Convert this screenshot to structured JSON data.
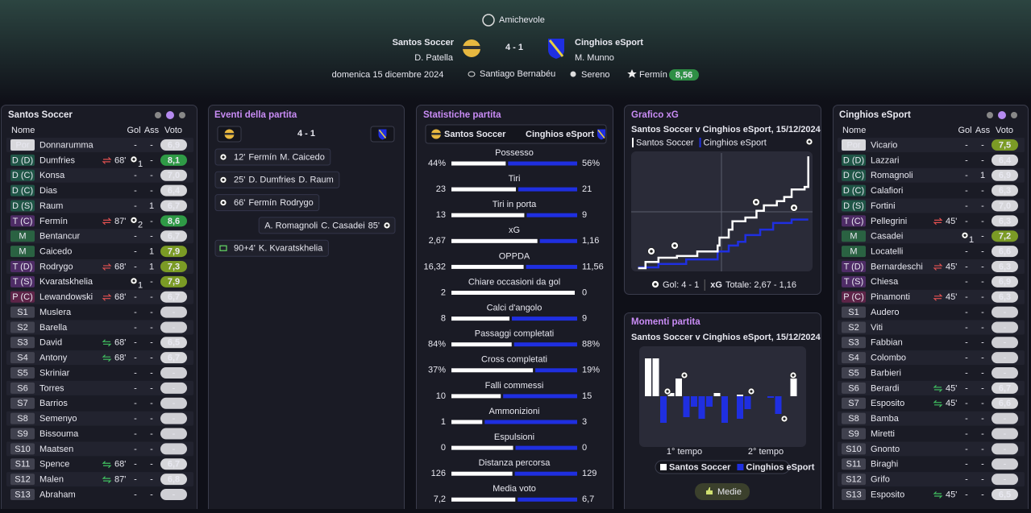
{
  "header": {
    "competition": "Amichevole",
    "home_team": "Santos Soccer",
    "home_manager": "D. Patella",
    "score": "4 - 1",
    "away_team": "Cinghios eSport",
    "away_manager": "M. Munno",
    "date": "domenica 15 dicembre 2024",
    "stadium": "Santiago Bernabéu",
    "weather": "Sereno",
    "player_of_match": "Fermín",
    "player_of_match_rating": "8,56"
  },
  "home_lineup": {
    "title": "Santos Soccer",
    "columns": [
      "Nome",
      "Gol",
      "Ass",
      "Voto"
    ],
    "rows": [
      {
        "pos": "Por",
        "name": "Donnarumma",
        "gol": "-",
        "ass": "-",
        "voto": {
          "value": 6.9,
          "label": "6,9"
        }
      },
      {
        "pos": "D (D)",
        "name": "Dumfries",
        "sub": {
          "dir": "out",
          "minute": "68'"
        },
        "gol": 1,
        "ass": "-",
        "voto": {
          "value": 8.1,
          "label": "8,1"
        }
      },
      {
        "pos": "D (C)",
        "name": "Konsa",
        "gol": "-",
        "ass": "-",
        "voto": {
          "value": 7.0,
          "label": "7,0"
        }
      },
      {
        "pos": "D (C)",
        "name": "Dias",
        "gol": "-",
        "ass": "-",
        "voto": {
          "value": 6.4,
          "label": "6,4"
        }
      },
      {
        "pos": "D (S)",
        "name": "Raum",
        "name_color": "#f2e35a",
        "gol": "-",
        "ass": 1,
        "voto": {
          "value": 6.7,
          "label": "6,7"
        }
      },
      {
        "pos": "T (C)",
        "name": "Fermín",
        "sub": {
          "dir": "out",
          "minute": "87'"
        },
        "gol": 2,
        "ass": "-",
        "voto": {
          "value": 8.6,
          "label": "8,6"
        }
      },
      {
        "pos": "M",
        "name": "Bentancur",
        "gol": "-",
        "ass": "-",
        "voto": {
          "value": 6.7,
          "label": "6,7"
        }
      },
      {
        "pos": "M",
        "name": "Caicedo",
        "gol": "-",
        "ass": 1,
        "voto": {
          "value": 7.9,
          "label": "7,9"
        }
      },
      {
        "pos": "T (D)",
        "name": "Rodrygo",
        "sub": {
          "dir": "out",
          "minute": "68'"
        },
        "gol": "-",
        "ass": 1,
        "voto": {
          "value": 7.3,
          "label": "7,3"
        }
      },
      {
        "pos": "T (S)",
        "name": "Kvaratskhelia",
        "gol": 1,
        "ass": "-",
        "voto": {
          "value": 7.9,
          "label": "7,9"
        }
      },
      {
        "pos": "P (C)",
        "name": "Lewandowski",
        "sub": {
          "dir": "out",
          "minute": "68'"
        },
        "gol": "-",
        "ass": "-",
        "voto": {
          "value": 6.7,
          "label": "6,7"
        }
      },
      {
        "pos": "S1",
        "name": "Muslera",
        "gol": "-",
        "ass": "-",
        "voto": "-"
      },
      {
        "pos": "S2",
        "name": "Barella",
        "gol": "-",
        "ass": "-",
        "voto": "-"
      },
      {
        "pos": "S3",
        "name": "David",
        "sub": {
          "dir": "in",
          "minute": "68'"
        },
        "gol": "-",
        "ass": "-",
        "voto": {
          "value": 6.5,
          "label": "6,5"
        }
      },
      {
        "pos": "S4",
        "name": "Antony",
        "sub": {
          "dir": "in",
          "minute": "68'"
        },
        "gol": "-",
        "ass": "-",
        "voto": {
          "value": 6.7,
          "label": "6,7"
        }
      },
      {
        "pos": "S5",
        "name": "Skriniar",
        "gol": "-",
        "ass": "-",
        "voto": "-"
      },
      {
        "pos": "S6",
        "name": "Torres",
        "gol": "-",
        "ass": "-",
        "voto": "-"
      },
      {
        "pos": "S7",
        "name": "Barrios",
        "gol": "-",
        "ass": "-",
        "voto": "-"
      },
      {
        "pos": "S8",
        "name": "Semenyo",
        "gol": "-",
        "ass": "-",
        "voto": "-"
      },
      {
        "pos": "S9",
        "name": "Bissouma",
        "gol": "-",
        "ass": "-",
        "voto": "-"
      },
      {
        "pos": "S10",
        "name": "Maatsen",
        "gol": "-",
        "ass": "-",
        "voto": "-"
      },
      {
        "pos": "S11",
        "name": "Spence",
        "sub": {
          "dir": "in",
          "minute": "68'"
        },
        "gol": "-",
        "ass": "-",
        "voto": {
          "value": 6.7,
          "label": "6,7"
        }
      },
      {
        "pos": "S12",
        "name": "Malen",
        "sub": {
          "dir": "in",
          "minute": "87'"
        },
        "gol": "-",
        "ass": "-",
        "voto": {
          "value": 6.8,
          "label": "6,8"
        }
      },
      {
        "pos": "S13",
        "name": "Abraham",
        "gol": "-",
        "ass": "-",
        "voto": "-"
      }
    ]
  },
  "away_lineup": {
    "title": "Cinghios eSport",
    "columns": [
      "Nome",
      "Gol",
      "Ass",
      "Voto"
    ],
    "rows": [
      {
        "pos": "Por",
        "name": "Vicario",
        "gol": "-",
        "ass": "-",
        "voto": {
          "value": 7.5,
          "label": "7,5"
        }
      },
      {
        "pos": "D (D)",
        "name": "Lazzari",
        "gol": "-",
        "ass": "-",
        "voto": {
          "value": 6.4,
          "label": "6,4"
        }
      },
      {
        "pos": "D (C)",
        "name": "Romagnoli",
        "gol": "-",
        "ass": 1,
        "voto": {
          "value": 6.9,
          "label": "6,9"
        }
      },
      {
        "pos": "D (C)",
        "name": "Calafiori",
        "gol": "-",
        "ass": "-",
        "voto": {
          "value": 6.3,
          "label": "6,3"
        }
      },
      {
        "pos": "D (S)",
        "name": "Fortini",
        "name_color": "#f2e35a",
        "gol": "-",
        "ass": "-",
        "voto": {
          "value": 7.0,
          "label": "7,0"
        }
      },
      {
        "pos": "T (C)",
        "name": "Pellegrini",
        "sub": {
          "dir": "out",
          "minute": "45'"
        },
        "gol": "-",
        "ass": "-",
        "voto": {
          "value": 6.3,
          "label": "6,3"
        }
      },
      {
        "pos": "M",
        "name": "Casadei",
        "gol": 1,
        "ass": "-",
        "voto": {
          "value": 7.2,
          "label": "7,2"
        }
      },
      {
        "pos": "M",
        "name": "Locatelli",
        "gol": "-",
        "ass": "-",
        "voto": {
          "value": 6.6,
          "label": "6,6"
        }
      },
      {
        "pos": "T (D)",
        "name": "Bernardeschi",
        "name_color": "#f2e35a",
        "sub": {
          "dir": "out",
          "minute": "45'"
        },
        "gol": "-",
        "ass": "-",
        "voto": {
          "value": 6.3,
          "label": "6,3"
        }
      },
      {
        "pos": "T (S)",
        "name": "Chiesa",
        "name_color": "#f2e35a",
        "gol": "-",
        "ass": "-",
        "voto": {
          "value": 6.9,
          "label": "6,9"
        }
      },
      {
        "pos": "P (C)",
        "name": "Pinamonti",
        "sub": {
          "dir": "out",
          "minute": "45'"
        },
        "gol": "-",
        "ass": "-",
        "voto": {
          "value": 6.3,
          "label": "6,3"
        }
      },
      {
        "pos": "S1",
        "name": "Audero",
        "gol": "-",
        "ass": "-",
        "voto": "-"
      },
      {
        "pos": "S2",
        "name": "Viti",
        "gol": "-",
        "ass": "-",
        "voto": "-"
      },
      {
        "pos": "S3",
        "name": "Fabbian",
        "gol": "-",
        "ass": "-",
        "voto": "-"
      },
      {
        "pos": "S4",
        "name": "Colombo",
        "gol": "-",
        "ass": "-",
        "voto": "-"
      },
      {
        "pos": "S5",
        "name": "Barbieri",
        "gol": "-",
        "ass": "-",
        "voto": "-"
      },
      {
        "pos": "S6",
        "name": "Berardi",
        "sub": {
          "dir": "in",
          "minute": "45'"
        },
        "gol": "-",
        "ass": "-",
        "voto": {
          "value": 6.7,
          "label": "6,7"
        }
      },
      {
        "pos": "S7",
        "name": "Esposito",
        "sub": {
          "dir": "in",
          "minute": "45'"
        },
        "gol": "-",
        "ass": "-",
        "voto": {
          "value": 6.6,
          "label": "6,6"
        }
      },
      {
        "pos": "S8",
        "name": "Bamba",
        "gol": "-",
        "ass": "-",
        "voto": "-"
      },
      {
        "pos": "S9",
        "name": "Miretti",
        "gol": "-",
        "ass": "-",
        "voto": "-"
      },
      {
        "pos": "S10",
        "name": "Gnonto",
        "gol": "-",
        "ass": "-",
        "voto": "-"
      },
      {
        "pos": "S11",
        "name": "Biraghi",
        "gol": "-",
        "ass": "-",
        "voto": "-"
      },
      {
        "pos": "S12",
        "name": "Grifo",
        "gol": "-",
        "ass": "-",
        "voto": "-"
      },
      {
        "pos": "S13",
        "name": "Esposito",
        "sub": {
          "dir": "in",
          "minute": "45'"
        },
        "gol": "-",
        "ass": "-",
        "voto": {
          "value": 6.5,
          "label": "6,5"
        }
      }
    ]
  },
  "events": {
    "title": "Eventi della partita",
    "score": "4 - 1",
    "items": [
      {
        "side": "home",
        "minute": "12'",
        "player": "Fermín",
        "assist": "M. Caicedo"
      },
      {
        "side": "home",
        "minute": "25'",
        "player": "D. Dumfries",
        "assist": "D. Raum"
      },
      {
        "side": "home",
        "minute": "66'",
        "player": "Fermín",
        "assist": "Rodrygo"
      },
      {
        "side": "away",
        "minute": "85'",
        "player": "C. Casadei",
        "assist": "A. Romagnoli"
      },
      {
        "side": "home",
        "minute": "90+4'",
        "player": "K. Kvaratskhelia",
        "type": "penalty"
      }
    ]
  },
  "stats": {
    "title": "Statistiche partita",
    "home_team": "Santos Soccer",
    "away_team": "Cinghios eSport",
    "home_color": "#ffffff",
    "away_color": "#1f2fe0",
    "items": [
      {
        "label": "Possesso",
        "home": {
          "value": 44,
          "label": "44%"
        },
        "away": {
          "value": 56,
          "label": "56%"
        }
      },
      {
        "label": "Tiri",
        "home": 23,
        "away": 21
      },
      {
        "label": "Tiri in porta",
        "home": 13,
        "away": 9
      },
      {
        "label": "xG",
        "home": {
          "value": 2.67,
          "label": "2,67"
        },
        "away": {
          "value": 1.16,
          "label": "1,16"
        }
      },
      {
        "label": "OPPDA",
        "home": {
          "value": 16.32,
          "label": "16,32"
        },
        "away": {
          "value": 11.56,
          "label": "11,56"
        }
      },
      {
        "label": "Chiare occasioni da gol",
        "home": 2,
        "away": 0
      },
      {
        "label": "Calci d'angolo",
        "home": 8,
        "away": 9
      },
      {
        "label": "Passaggi completati",
        "home": {
          "value": 84,
          "label": "84%"
        },
        "away": {
          "value": 88,
          "label": "88%"
        }
      },
      {
        "label": "Cross completati",
        "home": {
          "value": 37,
          "label": "37%"
        },
        "away": {
          "value": 19,
          "label": "19%"
        }
      },
      {
        "label": "Falli commessi",
        "home": 10,
        "away": 15
      },
      {
        "label": "Ammonizioni",
        "home": 1,
        "away": 3
      },
      {
        "label": "Espulsioni",
        "home": 0,
        "away": 0
      },
      {
        "label": "Distanza percorsa",
        "home": 126,
        "away": 129
      },
      {
        "label": "Media voto",
        "home": {
          "value": 7.2,
          "label": "7,2"
        },
        "away": {
          "value": 6.7,
          "label": "6,7"
        }
      }
    ]
  },
  "chart_data": [
    {
      "type": "line",
      "title": "Grafico xG",
      "subtitle": "Santos Soccer v Cinghios eSport, 15/12/2024",
      "step": true,
      "xlim": [
        0,
        95
      ],
      "ylim": [
        0,
        2.75
      ],
      "series": [
        {
          "name": "Santos Soccer",
          "color": "#ffffff",
          "x": [
            2,
            6,
            13,
            23,
            34,
            45,
            46,
            51,
            53,
            60,
            66,
            70,
            77,
            81,
            85,
            92,
            94
          ],
          "values": [
            0,
            0.15,
            0.25,
            0.29,
            0.4,
            0.54,
            0.73,
            0.92,
            1.12,
            1.21,
            1.37,
            1.5,
            1.6,
            1.7,
            1.88,
            1.94,
            2.67
          ]
        },
        {
          "name": "Cinghios eSport",
          "color": "#1f2fe0",
          "x": [
            2,
            13,
            28,
            45,
            51,
            56,
            60,
            68,
            75,
            85,
            94
          ],
          "values": [
            0.02,
            0.1,
            0.21,
            0.4,
            0.54,
            0.63,
            0.79,
            0.92,
            1.08,
            1.16,
            1.16
          ]
        }
      ],
      "goals_text": "Gol: 4 - 1",
      "xg_label": "xG",
      "xg_text": "Totale: 2,67 - 1,16"
    },
    {
      "type": "bar",
      "title": "Momenti partita",
      "subtitle": "Santos Soccer v Cinghios eSport, 15/12/2024",
      "diverging": true,
      "ylim": [
        -62,
        62
      ],
      "categories": [
        null,
        null,
        null,
        null,
        null,
        null,
        null,
        null,
        null,
        null,
        null,
        null,
        null,
        null,
        null,
        null,
        null,
        null,
        null,
        null
      ],
      "series": [
        {
          "name": "Santos Soccer",
          "color": "#ffffff",
          "values": [
            47,
            47,
            0,
            4,
            22,
            0,
            0,
            0,
            0,
            4,
            0,
            0,
            2,
            0,
            0,
            0,
            0,
            0,
            0,
            22
          ]
        },
        {
          "name": "Cinghios eSport",
          "color": "#1f2fe0",
          "values": [
            0,
            0,
            33,
            0,
            0,
            26,
            13,
            28,
            13,
            0,
            33,
            0,
            28,
            16,
            0,
            0,
            2,
            22,
            0,
            0
          ]
        }
      ],
      "half_labels": [
        "1° tempo",
        "2° tempo"
      ],
      "button": "Medie"
    }
  ]
}
